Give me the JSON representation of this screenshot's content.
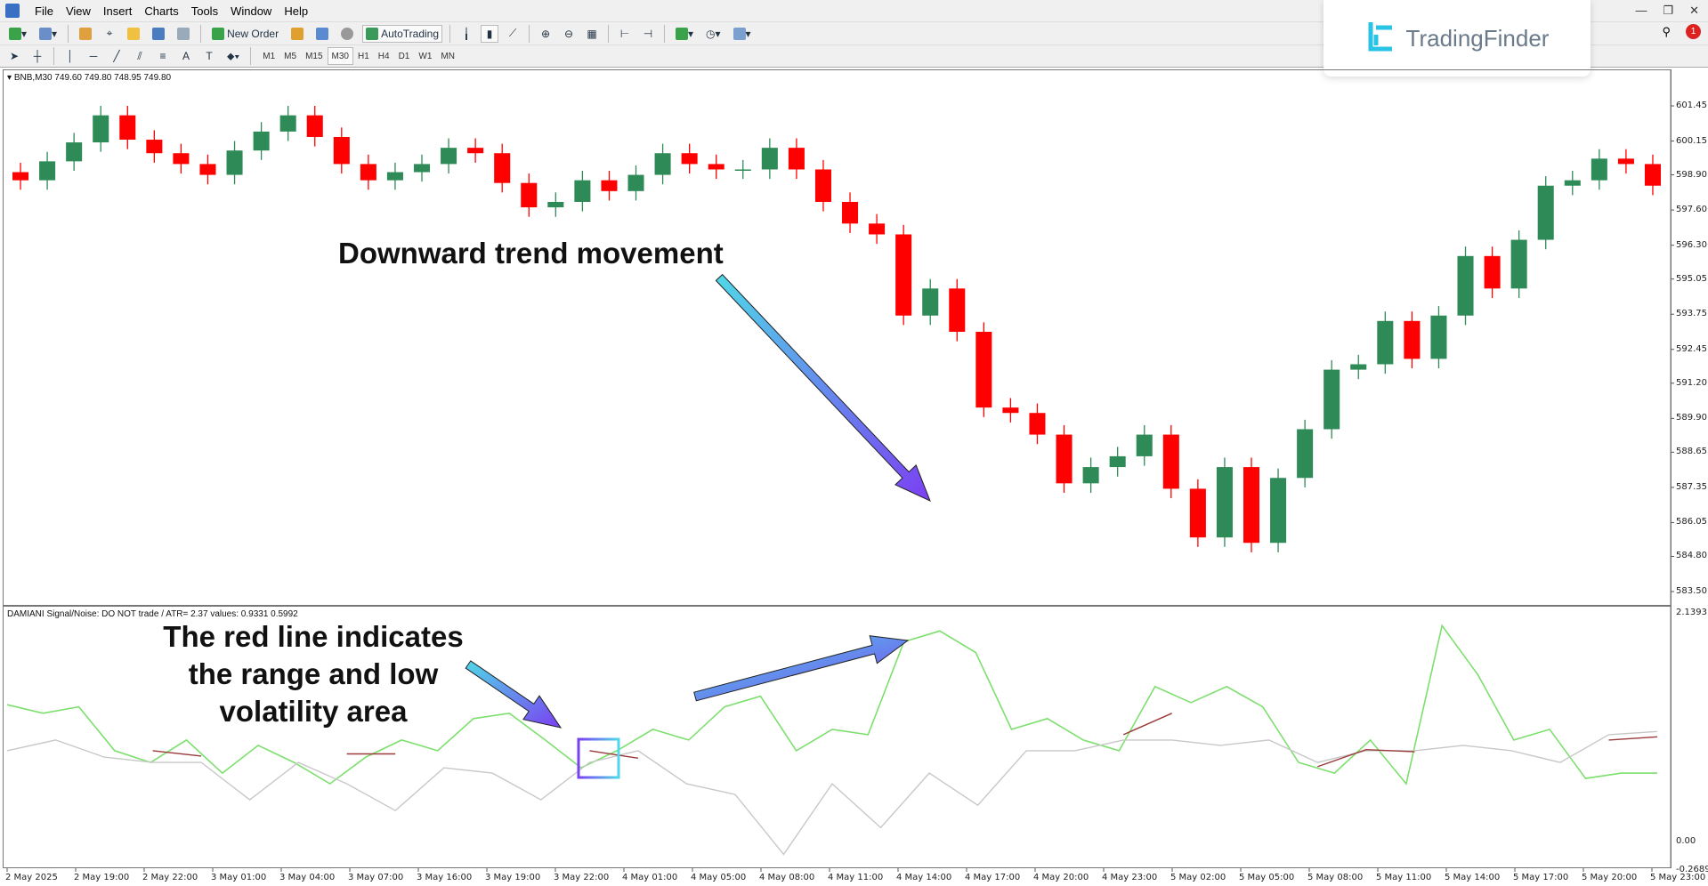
{
  "menu": [
    "File",
    "View",
    "Insert",
    "Charts",
    "Tools",
    "Window",
    "Help"
  ],
  "toolbar": {
    "new_order": "New Order",
    "auto_trading": "AutoTrading",
    "timeframes": [
      "M1",
      "M5",
      "M15",
      "M30",
      "H1",
      "H4",
      "D1",
      "W1",
      "MN"
    ],
    "active_timeframe": "M30"
  },
  "logo": {
    "text": "TradingFinder"
  },
  "chart": {
    "header": "BNB,M30  749.60 749.80 748.95 749.80",
    "indicator_header": "DAMIANI Signal/Noise: DO NOT trade  /  ATR= 2.37     values: 0.9331 0.5992"
  },
  "annotations": {
    "trend": "Downward trend movement",
    "red_line": [
      "The red line indicates",
      "the range and low",
      "volatility area"
    ]
  },
  "colors": {
    "bull": "#2e8b57",
    "bear": "#ff0000",
    "signal": "#7ddf6e",
    "noise": "#c8c8c8",
    "range": "#9b3a3a",
    "arrow_start": "#4fd8e8",
    "arrow_end": "#7b3ff2"
  },
  "chart_data": [
    {
      "type": "candlestick",
      "price_ticks": [
        "601.45",
        "600.15",
        "598.90",
        "597.60",
        "596.30",
        "595.05",
        "593.75",
        "592.45",
        "591.20",
        "589.90",
        "588.65",
        "587.35",
        "586.05",
        "584.80",
        "583.50"
      ],
      "ylim": [
        583.5,
        601.45
      ],
      "close": [
        598.7,
        599.4,
        600.1,
        601.1,
        600.2,
        599.7,
        599.3,
        598.9,
        599.8,
        600.5,
        601.1,
        600.3,
        599.3,
        598.7,
        599.0,
        599.3,
        599.9,
        599.7,
        598.6,
        597.7,
        597.9,
        598.7,
        598.3,
        598.9,
        599.7,
        599.3,
        599.1,
        599.1,
        599.9,
        599.1,
        597.9,
        597.1,
        596.7,
        593.7,
        594.7,
        593.1,
        590.3,
        590.1,
        589.3,
        587.5,
        588.1,
        588.5,
        589.3,
        587.3,
        585.5,
        588.1,
        585.3,
        587.7,
        589.5,
        591.7,
        591.9,
        593.5,
        592.1,
        593.7,
        595.9,
        594.7,
        596.5,
        598.5,
        598.7,
        599.5,
        599.3,
        598.5
      ]
    },
    {
      "type": "line",
      "yticks": [
        "2.1393",
        "0.00",
        "-0.2689"
      ],
      "ylim": [
        -0.2689,
        2.1393
      ],
      "series": [
        {
          "key": "signal",
          "values": [
            1.28,
            1.2,
            1.26,
            0.85,
            0.74,
            0.95,
            0.64,
            0.9,
            0.74,
            0.54,
            0.79,
            0.95,
            0.85,
            1.15,
            1.2,
            0.95,
            0.69,
            0.85,
            1.05,
            0.95,
            1.26,
            1.36,
            0.85,
            1.05,
            1.0,
            1.87,
            1.97,
            1.77,
            1.05,
            1.15,
            0.95,
            0.85,
            1.45,
            1.3,
            1.45,
            1.26,
            0.74,
            0.64,
            0.95,
            0.54,
            2.02,
            1.56,
            0.95,
            1.05,
            0.59,
            0.64,
            0.64
          ]
        },
        {
          "key": "noise",
          "values": [
            0.85,
            0.95,
            0.79,
            0.74,
            0.74,
            0.39,
            0.74,
            0.54,
            0.29,
            0.69,
            0.64,
            0.39,
            0.74,
            0.85,
            0.54,
            0.44,
            -0.12,
            0.54,
            0.13,
            0.64,
            0.34,
            0.85,
            0.85,
            0.95,
            0.95,
            0.9,
            0.95,
            0.74,
            0.85,
            0.85,
            0.9,
            0.85,
            0.74,
            1.0,
            1.03
          ]
        },
        {
          "key": "range",
          "values": [
            null,
            null,
            null,
            0.85,
            0.8,
            null,
            null,
            0.82,
            0.82,
            null,
            null,
            null,
            0.85,
            0.78,
            null,
            null,
            null,
            null,
            null,
            null,
            null,
            null,
            null,
            1.0,
            1.2,
            null,
            null,
            0.7,
            0.86,
            0.84,
            null,
            null,
            null,
            0.95,
            0.98
          ]
        }
      ]
    },
    {
      "type": "time_axis",
      "labels": [
        "2 May 2025",
        "2 May 19:00",
        "2 May 22:00",
        "3 May 01:00",
        "3 May 04:00",
        "3 May 07:00",
        "3 May 16:00",
        "3 May 19:00",
        "3 May 22:00",
        "4 May 01:00",
        "4 May 05:00",
        "4 May 08:00",
        "4 May 11:00",
        "4 May 14:00",
        "4 May 17:00",
        "4 May 20:00",
        "4 May 23:00",
        "5 May 02:00",
        "5 May 05:00",
        "5 May 08:00",
        "5 May 11:00",
        "5 May 14:00",
        "5 May 17:00",
        "5 May 20:00",
        "5 May 23:00"
      ]
    }
  ]
}
